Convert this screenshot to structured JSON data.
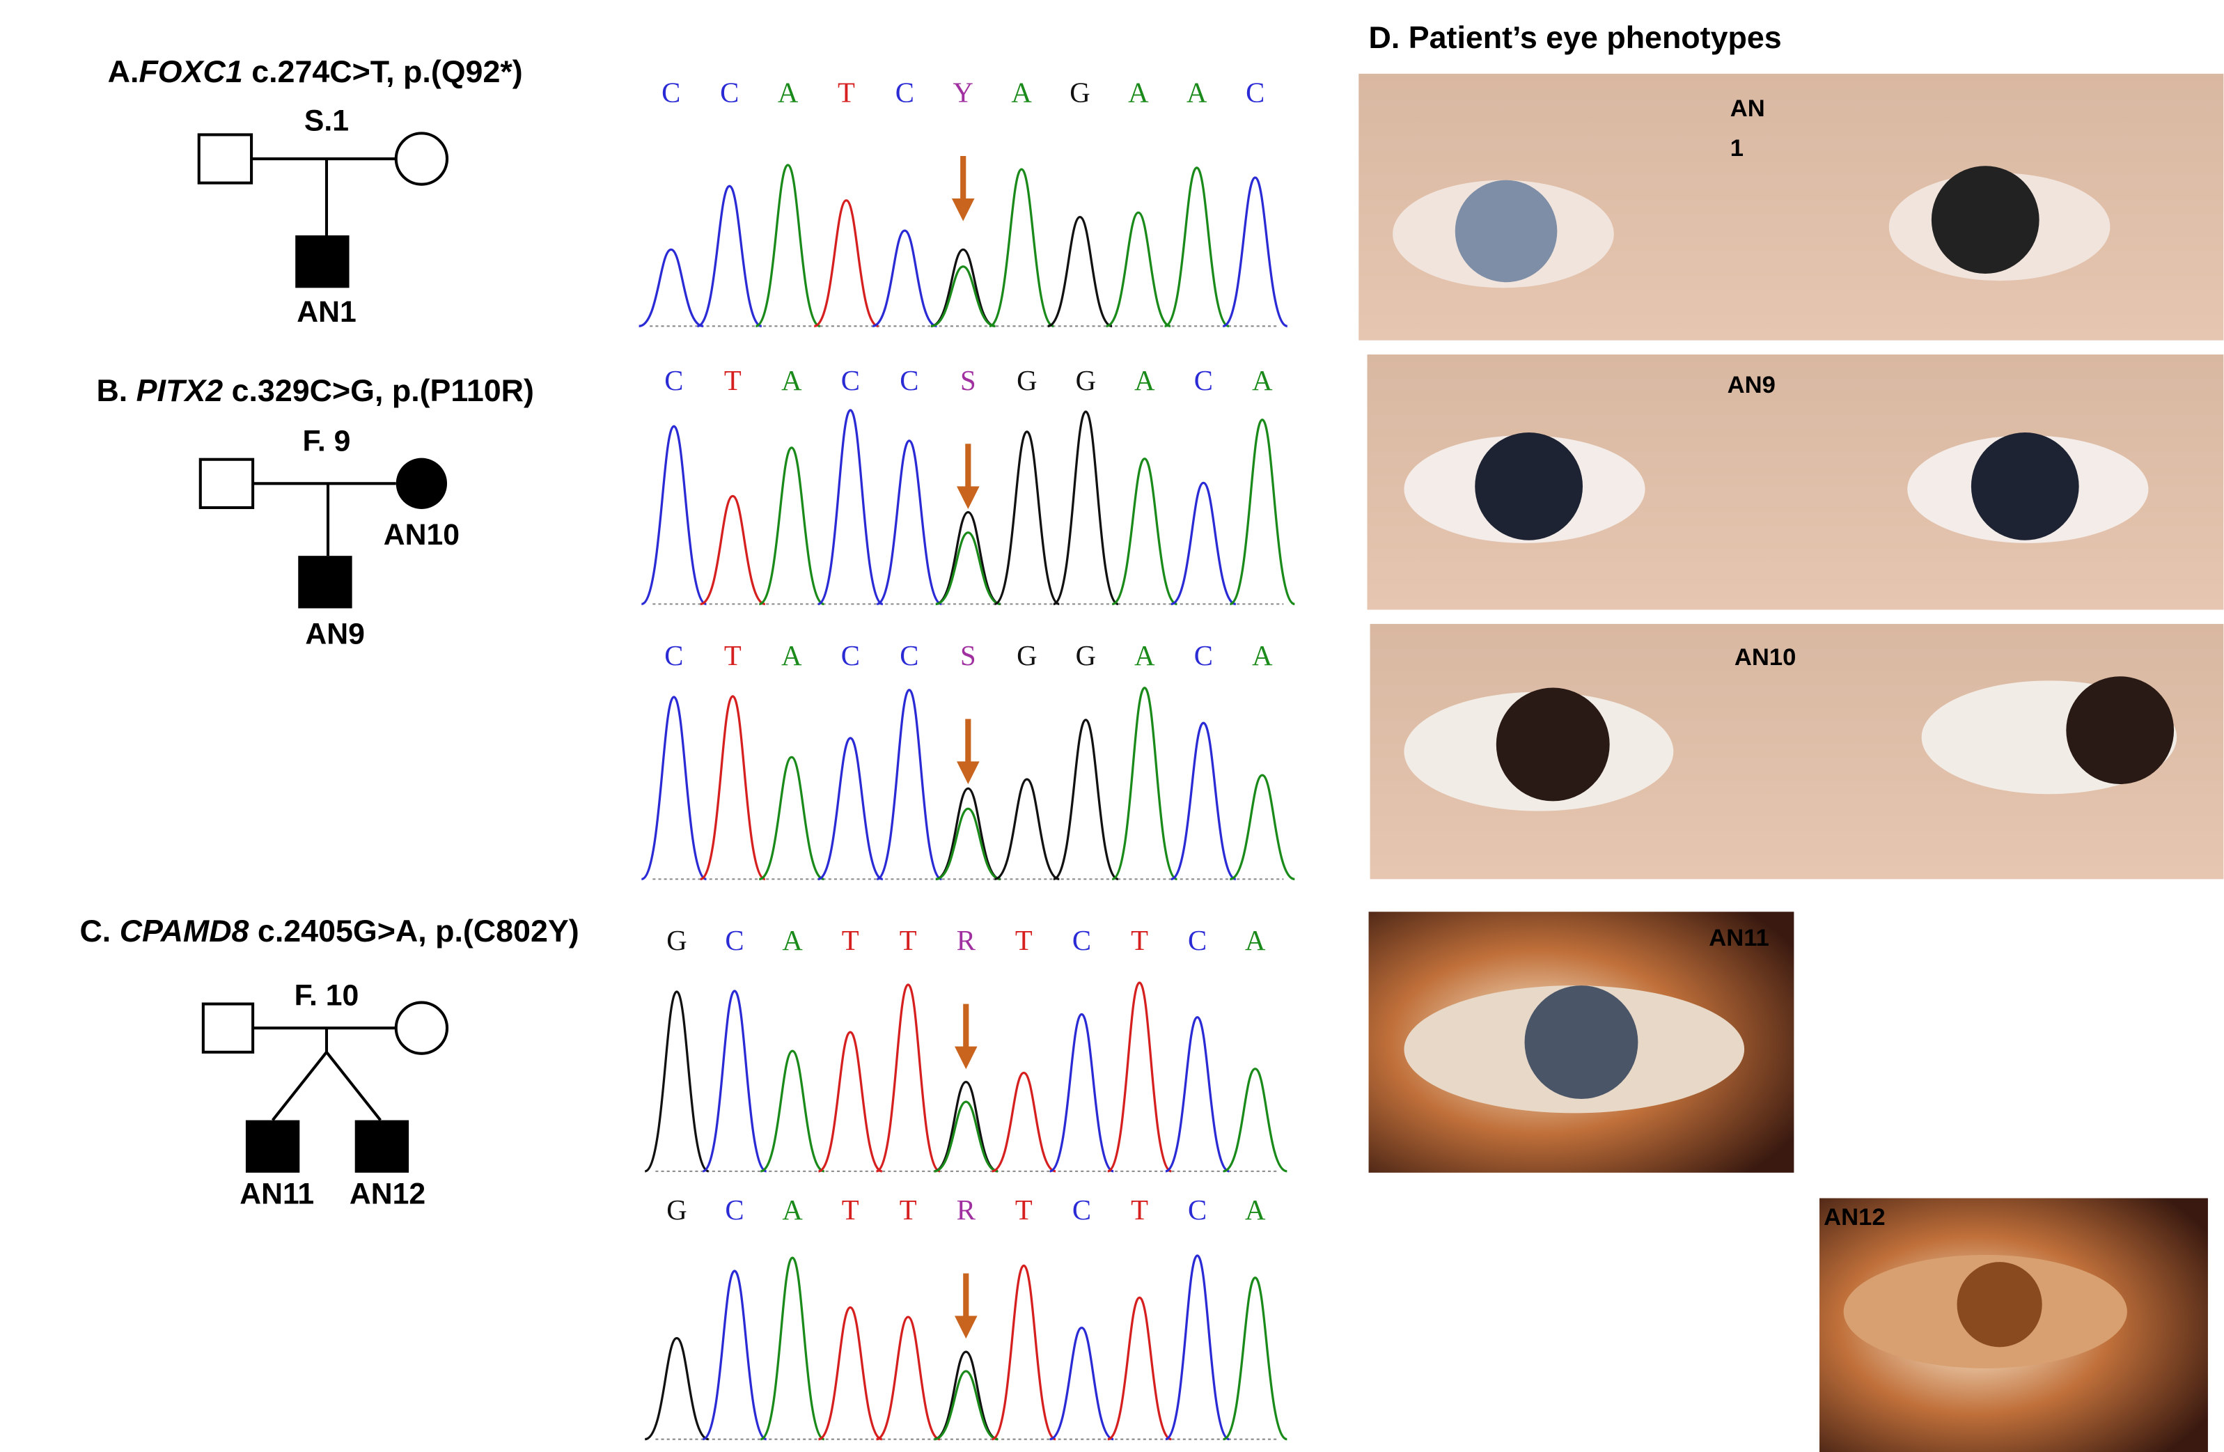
{
  "panels": [
    {
      "letter": "A.",
      "gene": "FOXC1",
      "variant": " c.274C>T, p.(Q92*)",
      "family": "S.1",
      "members": [
        "AN1"
      ],
      "sequences": [
        {
          "bases": [
            "C",
            "C",
            "A",
            "T",
            "C",
            "Y",
            "A",
            "G",
            "A",
            "A",
            "C"
          ],
          "colors": [
            "#2b2bd6",
            "#2b2bd6",
            "#1a8a1a",
            "#d62020",
            "#2b2bd6",
            "#a030a0",
            "#1a8a1a",
            "#111111",
            "#1a8a1a",
            "#1a8a1a",
            "#2b2bd6"
          ]
        }
      ]
    },
    {
      "letter": "B.",
      "gene": "PITX2",
      "variant": " c.329C>G, p.(P110R)",
      "family": "F. 9",
      "members": [
        "AN10",
        "AN9"
      ],
      "sequences": [
        {
          "bases": [
            "C",
            "T",
            "A",
            "C",
            "C",
            "S",
            "G",
            "G",
            "A",
            "C",
            "A"
          ],
          "colors": [
            "#2b2bd6",
            "#d62020",
            "#1a8a1a",
            "#2b2bd6",
            "#2b2bd6",
            "#a030a0",
            "#111111",
            "#111111",
            "#1a8a1a",
            "#2b2bd6",
            "#1a8a1a"
          ]
        },
        {
          "bases": [
            "C",
            "T",
            "A",
            "C",
            "C",
            "S",
            "G",
            "G",
            "A",
            "C",
            "A"
          ],
          "colors": [
            "#2b2bd6",
            "#d62020",
            "#1a8a1a",
            "#2b2bd6",
            "#2b2bd6",
            "#a030a0",
            "#111111",
            "#111111",
            "#1a8a1a",
            "#2b2bd6",
            "#1a8a1a"
          ]
        }
      ]
    },
    {
      "letter": "C.",
      "gene": "CPAMD8",
      "variant": " c.2405G>A, p.(C802Y)",
      "family": "F. 10",
      "members": [
        "AN11",
        "AN12"
      ],
      "sequences": [
        {
          "bases": [
            "G",
            "C",
            "A",
            "T",
            "T",
            "R",
            "T",
            "C",
            "T",
            "C",
            "A"
          ],
          "colors": [
            "#111111",
            "#2b2bd6",
            "#1a8a1a",
            "#d62020",
            "#d62020",
            "#a030a0",
            "#d62020",
            "#2b2bd6",
            "#d62020",
            "#2b2bd6",
            "#1a8a1a"
          ]
        },
        {
          "bases": [
            "G",
            "C",
            "A",
            "T",
            "T",
            "R",
            "T",
            "C",
            "T",
            "C",
            "A"
          ],
          "colors": [
            "#111111",
            "#2b2bd6",
            "#1a8a1a",
            "#d62020",
            "#d62020",
            "#a030a0",
            "#d62020",
            "#2b2bd6",
            "#d62020",
            "#2b2bd6",
            "#1a8a1a"
          ]
        }
      ]
    }
  ],
  "phenotypes": {
    "title": "D. Patient’s eye phenotypes",
    "photos": [
      {
        "label": [
          "AN",
          "1"
        ]
      },
      {
        "label": [
          "AN9"
        ]
      },
      {
        "label": [
          "AN10"
        ]
      },
      {
        "label": [
          "AN11"
        ]
      },
      {
        "label": [
          "AN12"
        ]
      }
    ]
  }
}
